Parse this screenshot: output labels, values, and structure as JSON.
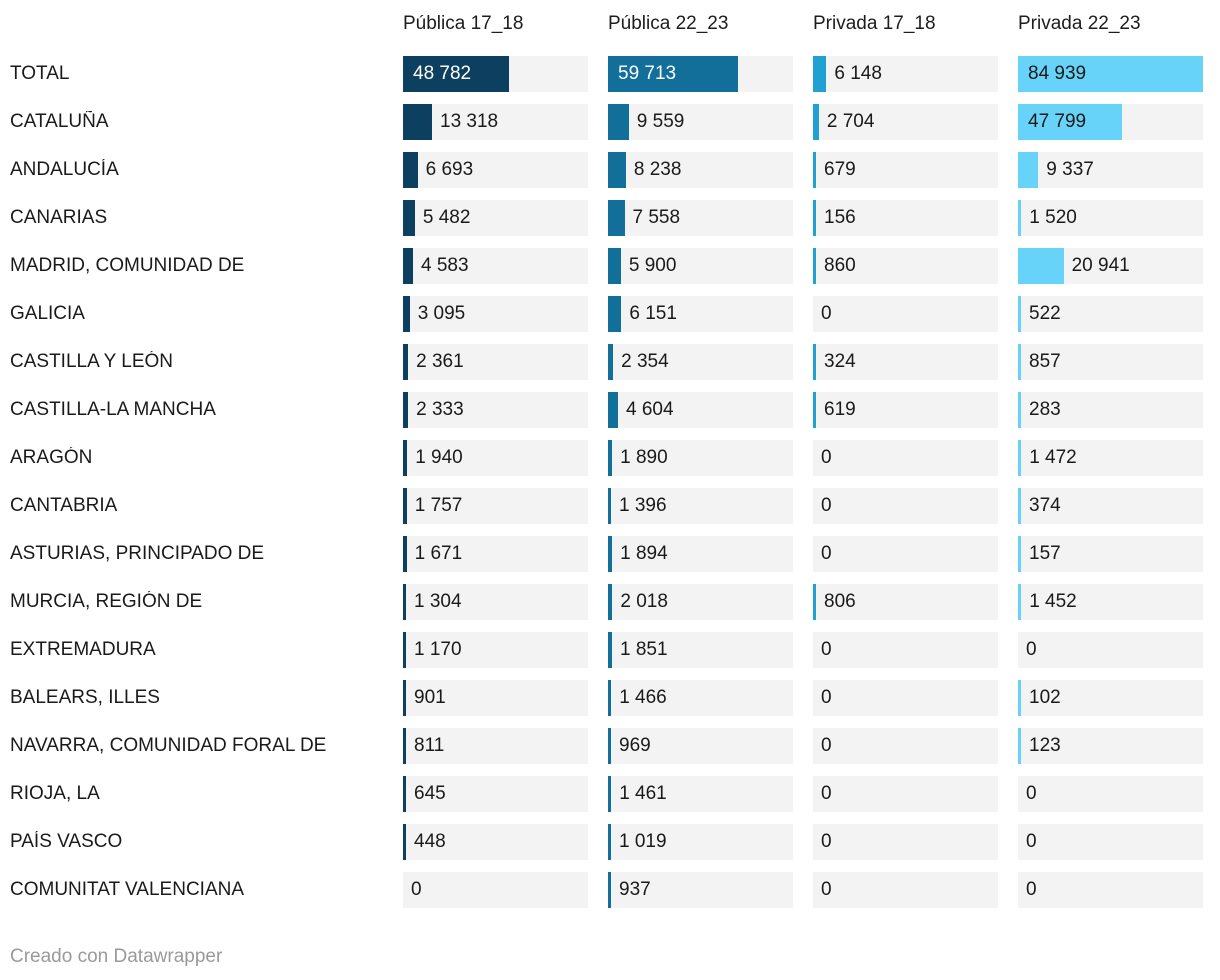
{
  "chart_data": {
    "type": "bar",
    "title": "",
    "layout": "table-with-bar-columns",
    "legend_position": "column-headers",
    "grid": false,
    "value_max": 84939,
    "number_format": "space-thousands",
    "categories": [
      "TOTAL",
      "CATALUÑA",
      "ANDALUCÍA",
      "CANARIAS",
      "MADRID, COMUNIDAD DE",
      "GALICIA",
      "CASTILLA Y LEÓN",
      "CASTILLA-LA MANCHA",
      "ARAGÓN",
      "CANTABRIA",
      "ASTURIAS, PRINCIPADO DE",
      "MURCIA, REGIÓN DE",
      "EXTREMADURA",
      "BALEARS, ILLES",
      "NAVARRA, COMUNIDAD FORAL DE",
      "RIOJA, LA",
      "PAÍS VASCO",
      "COMUNITAT VALENCIANA"
    ],
    "series": [
      {
        "name": "Pública 17_18",
        "color": "#0d3f61",
        "values": [
          48782,
          13318,
          6693,
          5482,
          4583,
          3095,
          2361,
          2333,
          1940,
          1757,
          1671,
          1304,
          1170,
          901,
          811,
          645,
          448,
          0
        ]
      },
      {
        "name": "Pública 22_23",
        "color": "#126f9a",
        "values": [
          59713,
          9559,
          8238,
          7558,
          5900,
          6151,
          2354,
          4604,
          1890,
          1396,
          1894,
          2018,
          1851,
          1466,
          969,
          1461,
          1019,
          937
        ]
      },
      {
        "name": "Privada 17_18",
        "color": "#21a1d2",
        "values": [
          6148,
          2704,
          679,
          156,
          860,
          0,
          324,
          619,
          0,
          0,
          0,
          806,
          0,
          0,
          0,
          0,
          0,
          0
        ]
      },
      {
        "name": "Privada 22_23",
        "color": "#67d3f9",
        "values": [
          84939,
          47799,
          9337,
          1520,
          20941,
          522,
          857,
          283,
          1472,
          374,
          157,
          1452,
          0,
          102,
          123,
          0,
          0,
          0
        ]
      }
    ]
  },
  "colors": {
    "cell_background": "#f3f3f3",
    "text": "#1a1a1a",
    "text_on_dark_bar": "#ffffff",
    "footer_text": "#9a9a9a"
  },
  "footer": {
    "credit": "Creado con Datawrapper"
  }
}
